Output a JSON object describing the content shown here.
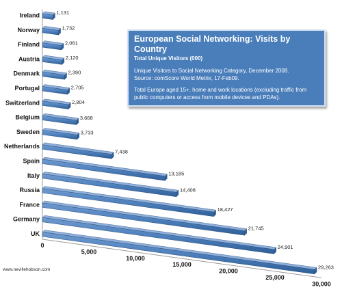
{
  "chart_data": {
    "type": "bar",
    "orientation": "horizontal",
    "categories": [
      "Ireland",
      "Norway",
      "Finland",
      "Austria",
      "Denmark",
      "Portugal",
      "Switzerland",
      "Belgium",
      "Sweden",
      "Netherlands",
      "Spain",
      "Italy",
      "Russia",
      "France",
      "Germany",
      "UK"
    ],
    "values": [
      1131,
      1732,
      2061,
      2120,
      2390,
      2705,
      2804,
      3668,
      3733,
      7438,
      13185,
      14408,
      18427,
      21745,
      24901,
      29263
    ],
    "value_labels": [
      "1,131",
      "1,732",
      "2,061",
      "2,120",
      "2,390",
      "2,705",
      "2,804",
      "3,668",
      "3,733",
      "7,438",
      "13,185",
      "14,408",
      "18,427",
      "21,745",
      "24,901",
      "29,263"
    ],
    "xlim": [
      0,
      30000
    ],
    "x_ticks": [
      0,
      5000,
      10000,
      15000,
      20000,
      25000,
      30000
    ],
    "x_tick_labels": [
      "0",
      "5,000",
      "10,000",
      "15,000",
      "20,000",
      "25,000",
      "30,000"
    ],
    "grid": false,
    "bar_color": "#4f81bd"
  },
  "legend_box": {
    "title": "European Social Networking: Visits by Country",
    "subtitle": "Total Unique Visitors (000)",
    "paragraph1_line1": "Unique Visitors to Social Networking Category, December 2008.",
    "paragraph1_line2": "Source: comScore World Metrix, 17-Feb09.",
    "paragraph2": "Total Europe aged 15+, home and work locations (excluding traffic from public computers or access from mobile devices and PDAs)."
  },
  "credit": "www.nevillehobson.com"
}
